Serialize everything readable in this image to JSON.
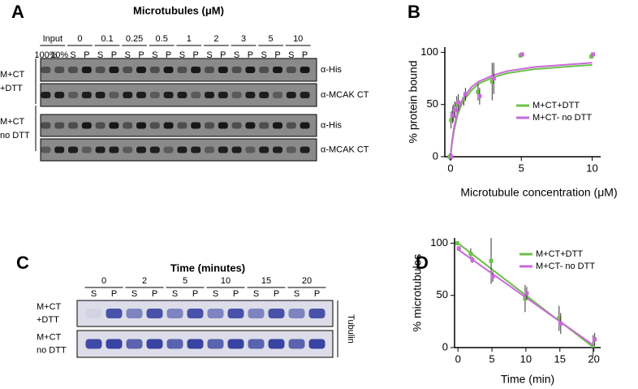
{
  "panel_letters": [
    "A",
    "B",
    "C",
    "D"
  ],
  "panel_a": {
    "title": "Microtubules (μM)",
    "groups": [
      "Input",
      "0",
      "0.1",
      "0.25",
      "0.5",
      "1",
      "2",
      "3",
      "5",
      "10"
    ],
    "lanes": [
      "100%",
      "10%",
      "S",
      "P",
      "S",
      "P",
      "S",
      "P",
      "S",
      "P",
      "S",
      "P",
      "S",
      "P",
      "S",
      "P",
      "S",
      "P",
      "S",
      "P"
    ],
    "conditions": [
      [
        "M+CT",
        "+DTT"
      ],
      [
        "M+CT",
        "no DTT"
      ]
    ],
    "antibodies": [
      "α-His",
      "α-MCAK CT",
      "α-His",
      "α-MCAK CT"
    ]
  },
  "panel_c": {
    "title": "Time (minutes)",
    "groups": [
      "0",
      "2",
      "5",
      "10",
      "15",
      "20"
    ],
    "lanes": [
      "S",
      "P",
      "S",
      "P",
      "S",
      "P",
      "S",
      "P",
      "S",
      "P",
      "S",
      "P"
    ],
    "conditions": [
      [
        "M+CT",
        "+DTT"
      ],
      [
        "M+CT",
        "no DTT"
      ]
    ],
    "stain": "Tubulin"
  },
  "chart_data": [
    {
      "type": "scatter",
      "x_label": "Microtubule concentration (μM)",
      "y_label": "% protein bound",
      "x": [
        0,
        0.1,
        0.25,
        0.5,
        1,
        2,
        3,
        5,
        10
      ],
      "xlim": [
        -0.4,
        10.6
      ],
      "xticks": [
        0,
        5,
        10
      ],
      "ylim": [
        0,
        105
      ],
      "yticks": [
        0,
        50,
        100
      ],
      "fit_x": [
        0,
        0.1,
        0.25,
        0.5,
        0.75,
        1,
        1.5,
        2,
        3,
        4,
        5,
        6,
        7,
        8,
        9,
        10
      ],
      "legend": "right",
      "series": [
        {
          "name": "M+CT+DTT",
          "color": "#6cc04a",
          "values": [
            0,
            35,
            42,
            50,
            55,
            62,
            72,
            97,
            96
          ],
          "errors": [
            3,
            8,
            8,
            8,
            6,
            8,
            18,
            2,
            2
          ],
          "fit": [
            0,
            12,
            25,
            40,
            49,
            55,
            64,
            70,
            76,
            80,
            82,
            84,
            85,
            86,
            87,
            88
          ]
        },
        {
          "name": "M+CT- no DTT",
          "color": "#c86ad8",
          "values": [
            0,
            40,
            45,
            52,
            60,
            58,
            75,
            98,
            98
          ],
          "errors": [
            3,
            8,
            8,
            8,
            6,
            8,
            15,
            2,
            2
          ],
          "fit": [
            0,
            14,
            28,
            43,
            52,
            58,
            67,
            72,
            78,
            82,
            84,
            86,
            87,
            88,
            89,
            90
          ]
        }
      ]
    },
    {
      "type": "scatter",
      "x_label": "Time (min)",
      "y_label": "% microtubules",
      "x": [
        0,
        2,
        5,
        10,
        15,
        20
      ],
      "xlim": [
        -0.5,
        21
      ],
      "xticks": [
        0,
        5,
        10,
        15,
        20
      ],
      "ylim": [
        0,
        105
      ],
      "yticks": [
        0,
        50,
        100
      ],
      "fit_x": [
        0,
        20
      ],
      "legend": "top-right",
      "series": [
        {
          "name": "M+CT+DTT",
          "color": "#6cc04a",
          "values": [
            100,
            90,
            83,
            47,
            28,
            2
          ],
          "errors": [
            2,
            5,
            22,
            13,
            12,
            10
          ],
          "fit": [
            100,
            0
          ]
        },
        {
          "name": "M+CT- no DTT",
          "color": "#c86ad8",
          "values": [
            95,
            84,
            68,
            52,
            23,
            8
          ],
          "errors": [
            2,
            3,
            5,
            6,
            10,
            6
          ],
          "fit": [
            94,
            2
          ]
        }
      ]
    }
  ]
}
